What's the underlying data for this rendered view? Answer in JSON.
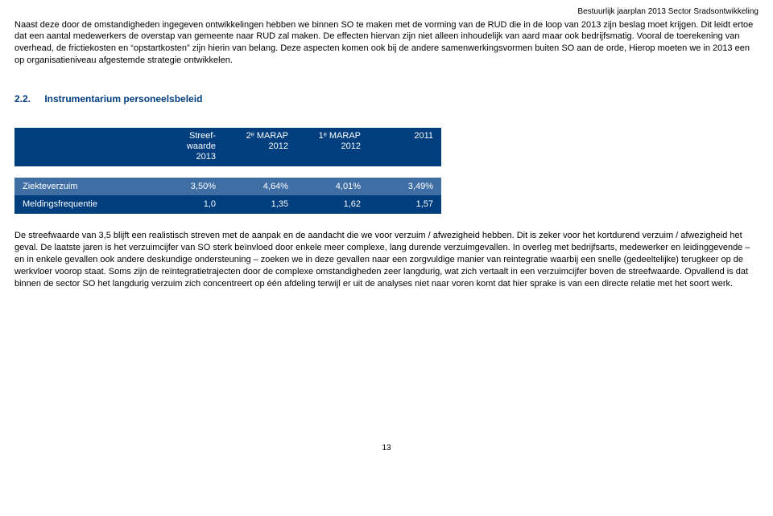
{
  "header": {
    "right": "Bestuurlijk jaarplan 2013 Sector Sradsontwikkeling"
  },
  "para1": "Naast deze door de omstandigheden ingegeven ontwikkelingen hebben we binnen SO te maken met de vorming van de RUD die in de loop van 2013 zijn beslag moet krijgen. Dit leidt ertoe dat een aantal medewerkers de overstap van gemeente naar RUD zal maken. De effecten hiervan zijn niet alleen inhoudelijk van aard maar ook bedrijfsmatig. Vooral de toerekening van overhead, de frictiekosten en “opstartkosten” zijn hierin van belang. Deze aspecten komen ook bij de andere samenwerkingsvormen buiten SO aan de orde, Hierop moeten we in 2013 een op organisatieniveau afgestemde strategie ontwikkelen.",
  "section": {
    "num": "2.2.",
    "title": "Instrumentarium personeelsbeleid"
  },
  "table": {
    "header_bg": "#003e7e",
    "row_alt_bg": "#3f6ea5",
    "text_color": "#ffffff",
    "columns": [
      "",
      "Streef-\nwaarde\n2013",
      "2ᵉ MARAP\n2012",
      "1ᵉ MARAP\n2012",
      "2011"
    ],
    "rows": [
      [
        "Ziekteverzuim",
        "3,50%",
        "4,64%",
        "4,01%",
        "3,49%"
      ],
      [
        "Meldingsfrequentie",
        "1,0",
        "1,35",
        "1,62",
        "1,57"
      ]
    ]
  },
  "para2": "De streefwaarde van 3,5 blijft een realistisch streven met de aanpak en de aandacht die we voor verzuim / afwezigheid hebben. Dit is zeker voor het kortdurend verzuim / afwezigheid het geval. De laatste jaren is het verzuimcijfer van SO sterk beïnvloed door enkele meer complexe, lang durende verzuimgevallen. In overleg met bedrijfsarts, medewerker en leidinggevende – en in enkele gevallen ook andere deskundige ondersteuning – zoeken we in deze gevallen naar een zorgvuldige manier van reintegratie waarbij een snelle (gedeeltelijke) terugkeer op de werkvloer voorop staat. Soms zijn de reïntegratietrajecten door de complexe omstandigheden zeer langdurig, wat zich vertaalt in een verzuimcijfer boven de streefwaarde. Opvallend is dat binnen de sector SO het langdurig verzuim zich concentreert op één afdeling terwijl er uit de analyses niet naar voren komt dat hier sprake is van een directe relatie met het soort werk.",
  "page_number": "13"
}
